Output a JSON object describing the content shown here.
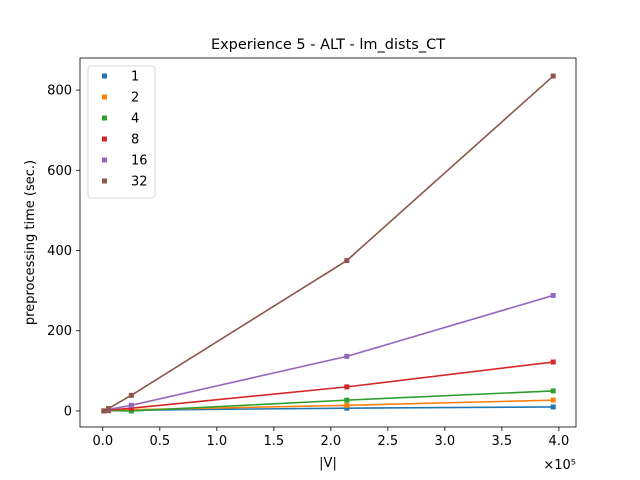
{
  "chart_data": {
    "type": "line",
    "title": "Experience 5 - ALT - lm_dists_CT",
    "xlabel": "|V|",
    "ylabel": "preprocessing time (sec.)",
    "x_multiplier_label": "×10⁵",
    "x_multiplier": 100000,
    "xlim": [
      -20000,
      415000
    ],
    "ylim": [
      -40,
      880
    ],
    "xticks": [
      0,
      50000,
      100000,
      150000,
      200000,
      250000,
      300000,
      350000,
      400000
    ],
    "xtick_labels": [
      "0.0",
      "0.5",
      "1.0",
      "1.5",
      "2.0",
      "2.5",
      "3.0",
      "3.5",
      "4.0"
    ],
    "yticks": [
      0,
      200,
      400,
      600,
      800
    ],
    "ytick_labels": [
      "0",
      "200",
      "400",
      "600",
      "800"
    ],
    "grid": false,
    "legend_position": "top-left",
    "x": [
      1000,
      5000,
      25000,
      214000,
      395000
    ],
    "series": [
      {
        "name": "1",
        "color": "#1f77b4",
        "values": [
          0,
          1,
          2,
          7,
          10
        ]
      },
      {
        "name": "2",
        "color": "#ff7f0e",
        "values": [
          0,
          1,
          3,
          14,
          27
        ]
      },
      {
        "name": "4",
        "color": "#2ca02c",
        "values": [
          0,
          1,
          0,
          27,
          50
        ]
      },
      {
        "name": "8",
        "color": "#d62728",
        "values": [
          0,
          2,
          7,
          60,
          122
        ]
      },
      {
        "name": "16",
        "color": "#9467bd",
        "values": [
          0,
          4,
          14,
          136,
          288
        ]
      },
      {
        "name": "32",
        "color": "#8c564b",
        "values": [
          0,
          6,
          39,
          375,
          835
        ]
      }
    ]
  }
}
